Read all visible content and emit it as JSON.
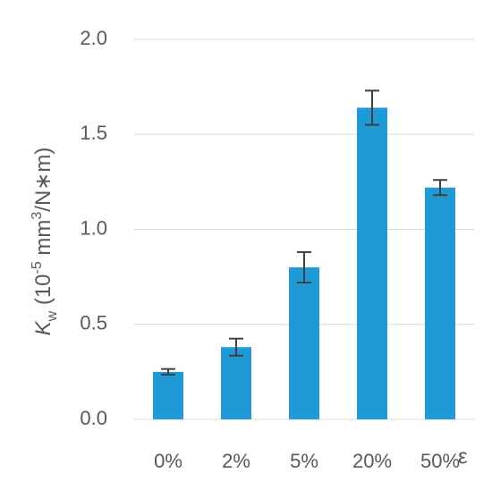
{
  "chart_data": {
    "type": "bar",
    "ylabel": [
      "K",
      "w",
      " (10",
      "-5",
      " mm",
      "3",
      "/N∗m)"
    ],
    "ylabel_styles": [
      "italic",
      "sub",
      "normal",
      "sup",
      "normal",
      "sup",
      "normal"
    ],
    "xlabel": "ε",
    "categories": [
      "0%",
      "2%",
      "5%",
      "20%",
      "50%"
    ],
    "values": [
      0.25,
      0.38,
      0.8,
      1.64,
      1.22
    ],
    "errors": [
      0.015,
      0.045,
      0.08,
      0.09,
      0.04
    ],
    "color": "#1f9ad6",
    "error_color": "#404040",
    "ylim": [
      0,
      2
    ],
    "yticks": [
      {
        "value": 0,
        "label": "0.0"
      },
      {
        "value": 0.5,
        "label": "0.5"
      },
      {
        "value": 1,
        "label": "1.0"
      },
      {
        "value": 1.5,
        "label": "1.5"
      },
      {
        "value": 2,
        "label": "2.0"
      }
    ],
    "grid": true
  }
}
